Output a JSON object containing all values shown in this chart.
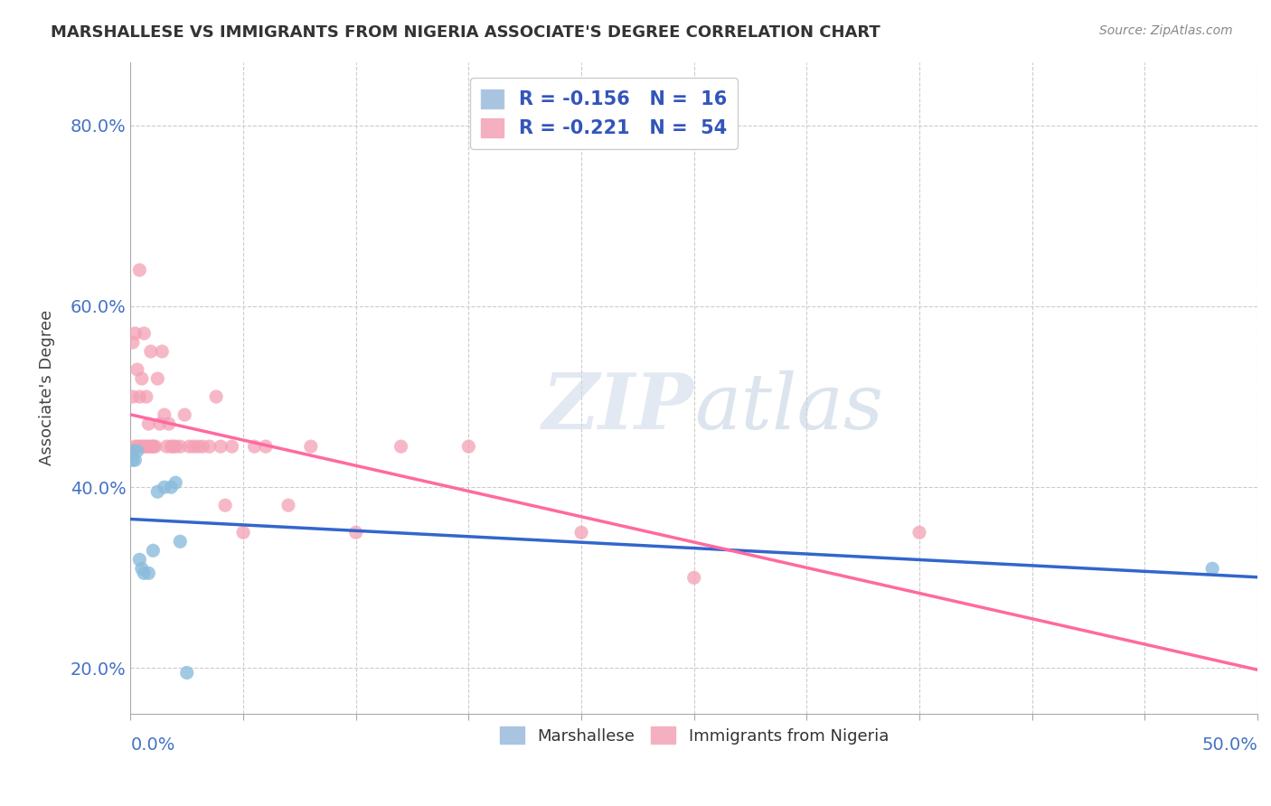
{
  "title": "MARSHALLESE VS IMMIGRANTS FROM NIGERIA ASSOCIATE'S DEGREE CORRELATION CHART",
  "source": "Source: ZipAtlas.com",
  "ylabel": "Associate's Degree",
  "marshallese_x": [
    0.001,
    0.001,
    0.002,
    0.003,
    0.004,
    0.005,
    0.006,
    0.008,
    0.01,
    0.012,
    0.015,
    0.018,
    0.02,
    0.022,
    0.025,
    0.48
  ],
  "marshallese_y": [
    0.44,
    0.43,
    0.43,
    0.44,
    0.32,
    0.31,
    0.305,
    0.305,
    0.33,
    0.395,
    0.4,
    0.4,
    0.405,
    0.34,
    0.195,
    0.31
  ],
  "nigeria_x": [
    0.001,
    0.001,
    0.001,
    0.002,
    0.002,
    0.003,
    0.003,
    0.004,
    0.004,
    0.004,
    0.005,
    0.005,
    0.006,
    0.006,
    0.007,
    0.007,
    0.008,
    0.008,
    0.009,
    0.009,
    0.01,
    0.01,
    0.011,
    0.012,
    0.013,
    0.014,
    0.015,
    0.016,
    0.017,
    0.018,
    0.019,
    0.02,
    0.022,
    0.024,
    0.026,
    0.028,
    0.03,
    0.032,
    0.035,
    0.038,
    0.04,
    0.042,
    0.045,
    0.05,
    0.055,
    0.06,
    0.07,
    0.08,
    0.1,
    0.12,
    0.15,
    0.2,
    0.25,
    0.35
  ],
  "nigeria_y": [
    0.44,
    0.5,
    0.56,
    0.445,
    0.57,
    0.445,
    0.53,
    0.64,
    0.445,
    0.5,
    0.52,
    0.445,
    0.57,
    0.445,
    0.445,
    0.5,
    0.445,
    0.47,
    0.445,
    0.55,
    0.445,
    0.445,
    0.445,
    0.52,
    0.47,
    0.55,
    0.48,
    0.445,
    0.47,
    0.445,
    0.445,
    0.445,
    0.445,
    0.48,
    0.445,
    0.445,
    0.445,
    0.445,
    0.445,
    0.5,
    0.445,
    0.38,
    0.445,
    0.35,
    0.445,
    0.445,
    0.38,
    0.445,
    0.35,
    0.445,
    0.445,
    0.35,
    0.3,
    0.35
  ],
  "marshallese_color": "#8BBCDC",
  "nigeria_color": "#F4A0B5",
  "marshallese_line_color": "#3366CC",
  "nigeria_line_color": "#FF69A0",
  "xlim": [
    0,
    0.5
  ],
  "ylim": [
    0.15,
    0.87
  ],
  "xticks": [
    0.0,
    0.05,
    0.1,
    0.15,
    0.2,
    0.25,
    0.3,
    0.35,
    0.4,
    0.45,
    0.5
  ],
  "yticks": [
    0.2,
    0.4,
    0.6,
    0.8
  ],
  "background_color": "#ffffff",
  "grid_color": "#cccccc"
}
